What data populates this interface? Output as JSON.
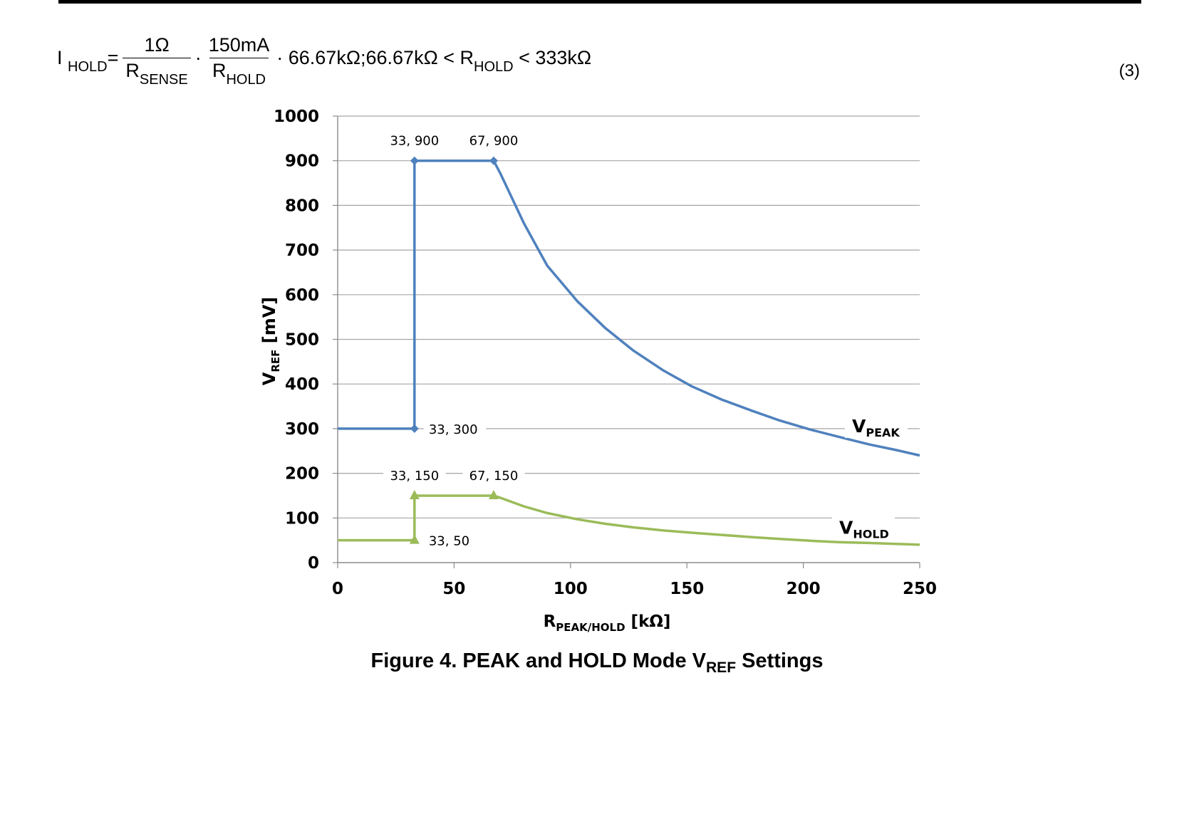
{
  "equation": {
    "lhs": "I",
    "lhs_sub": "HOLD",
    "equals": "=",
    "frac1_num": "1Ω",
    "frac1_den": "R",
    "frac1_den_sub": "SENSE",
    "dot1": "·",
    "frac2_num": "150mA",
    "frac2_den": "R",
    "frac2_den_sub": "HOLD",
    "tail1": "· 66.67kΩ;66.67kΩ < R",
    "tail1_sub": "HOLD",
    "tail2": " < 333kΩ",
    "number": "(3)"
  },
  "caption": {
    "prefix": "Figure 4.  PEAK and HOLD Mode V",
    "sub": "REF",
    "suffix": " Settings"
  },
  "chart_data": {
    "type": "line",
    "xlabel": "R",
    "xlabel_sub": "PEAK/HOLD",
    "xlabel_unit": " [kΩ]",
    "ylabel": "V",
    "ylabel_sub": "REF",
    "ylabel_unit": " [mV]",
    "xlim": [
      0,
      250
    ],
    "ylim": [
      0,
      1000
    ],
    "x_ticks": [
      "0",
      "50",
      "100",
      "150",
      "200",
      "250"
    ],
    "y_ticks": [
      "0",
      "100",
      "200",
      "300",
      "400",
      "500",
      "600",
      "700",
      "800",
      "900",
      "1000"
    ],
    "grid": true,
    "series": [
      {
        "name": "V",
        "name_sub": "PEAK",
        "color": "#4f81bd",
        "marker": "diamond",
        "points": [
          [
            0,
            300
          ],
          [
            33,
            300
          ],
          [
            33,
            900
          ],
          [
            67,
            900
          ],
          [
            70,
            870
          ],
          [
            75,
            815
          ],
          [
            80,
            760
          ],
          [
            90,
            665
          ],
          [
            103,
            585
          ],
          [
            115,
            525
          ],
          [
            127,
            475
          ],
          [
            140,
            430
          ],
          [
            152,
            395
          ],
          [
            165,
            365
          ],
          [
            178,
            340
          ],
          [
            190,
            318
          ],
          [
            203,
            298
          ],
          [
            215,
            282
          ],
          [
            228,
            265
          ],
          [
            240,
            252
          ],
          [
            250,
            240
          ]
        ],
        "markers": [
          [
            33,
            300
          ],
          [
            33,
            900
          ],
          [
            67,
            900
          ]
        ]
      },
      {
        "name": "V",
        "name_sub": "HOLD",
        "color": "#9bbb59",
        "marker": "triangle",
        "points": [
          [
            0,
            50
          ],
          [
            33,
            50
          ],
          [
            33,
            150
          ],
          [
            67,
            150
          ],
          [
            70,
            145
          ],
          [
            80,
            126
          ],
          [
            90,
            111
          ],
          [
            103,
            97
          ],
          [
            115,
            87
          ],
          [
            127,
            79
          ],
          [
            140,
            72
          ],
          [
            152,
            67
          ],
          [
            165,
            62
          ],
          [
            178,
            57
          ],
          [
            190,
            53
          ],
          [
            203,
            49
          ],
          [
            215,
            46
          ],
          [
            228,
            44
          ],
          [
            240,
            42
          ],
          [
            250,
            40
          ]
        ],
        "markers": [
          [
            33,
            50
          ],
          [
            33,
            150
          ],
          [
            67,
            150
          ]
        ]
      }
    ],
    "annotations": [
      {
        "x": 33,
        "y": 900,
        "label": "33, 900",
        "pos": "above"
      },
      {
        "x": 67,
        "y": 900,
        "label": "67, 900",
        "pos": "above"
      },
      {
        "x": 33,
        "y": 300,
        "label": "33, 300",
        "pos": "right"
      },
      {
        "x": 33,
        "y": 150,
        "label": "33, 150",
        "pos": "above"
      },
      {
        "x": 67,
        "y": 150,
        "label": "67, 150",
        "pos": "above"
      },
      {
        "x": 33,
        "y": 50,
        "label": "33, 50",
        "pos": "right"
      }
    ]
  }
}
